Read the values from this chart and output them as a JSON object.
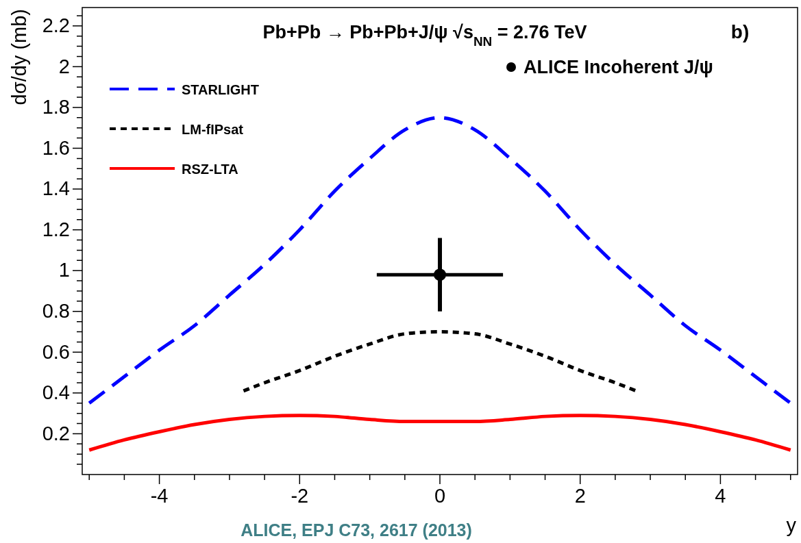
{
  "chart_data": {
    "type": "line",
    "title": "Pb+Pb → Pb+Pb+J/ψ   √s$_{NN}$ = 2.76 TeV",
    "subtitle": "b)",
    "xlabel": "y",
    "ylabel": "dσ/dy (mb)",
    "annotations": [
      "ALICE, EPJ C73, 2617 (2013)"
    ],
    "xlim": [
      -5.1,
      5.1
    ],
    "ylim": [
      0,
      2.29
    ],
    "xticks": [
      -4,
      -2,
      0,
      2,
      4,
      {
        "value": -5,
        "label": null
      },
      {
        "value": -4.5,
        "label": null
      },
      {
        "value": -3.5,
        "label": null
      },
      {
        "value": -3,
        "label": null
      },
      {
        "value": -2.5,
        "label": null
      },
      {
        "value": -1.5,
        "label": null
      },
      {
        "value": -1,
        "label": null
      },
      {
        "value": -0.5,
        "label": null
      },
      {
        "value": 0.5,
        "label": null
      },
      {
        "value": 1,
        "label": null
      },
      {
        "value": 1.5,
        "label": null
      },
      {
        "value": 2.5,
        "label": null
      },
      {
        "value": 3,
        "label": null
      },
      {
        "value": 3.5,
        "label": null
      },
      {
        "value": 4.5,
        "label": null
      },
      {
        "value": 5,
        "label": null
      }
    ],
    "yticks": [
      0.2,
      0.4,
      0.6,
      0.8,
      1,
      1.2,
      1.4,
      1.6,
      1.8,
      2,
      2.2,
      {
        "value": 0.05,
        "label": null
      },
      {
        "value": 0.1,
        "label": null
      },
      {
        "value": 0.15,
        "label": null
      },
      {
        "value": 0.25,
        "label": null
      },
      {
        "value": 0.3,
        "label": null
      },
      {
        "value": 0.35,
        "label": null
      },
      {
        "value": 0.45,
        "label": null
      },
      {
        "value": 0.5,
        "label": null
      },
      {
        "value": 0.55,
        "label": null
      },
      {
        "value": 0.65,
        "label": null
      },
      {
        "value": 0.7,
        "label": null
      },
      {
        "value": 0.75,
        "label": null
      },
      {
        "value": 0.85,
        "label": null
      },
      {
        "value": 0.9,
        "label": null
      },
      {
        "value": 0.95,
        "label": null
      },
      {
        "value": 1.05,
        "label": null
      },
      {
        "value": 1.1,
        "label": null
      },
      {
        "value": 1.15,
        "label": null
      },
      {
        "value": 1.25,
        "label": null
      },
      {
        "value": 1.3,
        "label": null
      },
      {
        "value": 1.35,
        "label": null
      },
      {
        "value": 1.45,
        "label": null
      },
      {
        "value": 1.5,
        "label": null
      },
      {
        "value": 1.55,
        "label": null
      },
      {
        "value": 1.65,
        "label": null
      },
      {
        "value": 1.7,
        "label": null
      },
      {
        "value": 1.75,
        "label": null
      },
      {
        "value": 1.85,
        "label": null
      },
      {
        "value": 1.9,
        "label": null
      },
      {
        "value": 1.95,
        "label": null
      },
      {
        "value": 2.05,
        "label": null
      },
      {
        "value": 2.1,
        "label": null
      },
      {
        "value": 2.15,
        "label": null
      },
      {
        "value": 2.25,
        "label": null
      }
    ],
    "grid": false,
    "legend": "top left",
    "marker": "none",
    "series": [
      {
        "name": "STARLIGHT",
        "color": "#0000ff",
        "line_style": "dashed",
        "x": [
          -5,
          -4.5,
          -4,
          -3.5,
          -3,
          -2.5,
          -2,
          -1.5,
          -1,
          -0.5,
          0,
          0.5,
          1,
          1.5,
          2,
          2.5,
          3,
          3.5,
          4,
          4.5,
          5
        ],
        "values": [
          0.35,
          0.48,
          0.61,
          0.73,
          0.88,
          1.03,
          1.2,
          1.39,
          1.55,
          1.69,
          1.75,
          1.69,
          1.55,
          1.39,
          1.2,
          1.03,
          0.88,
          0.73,
          0.61,
          0.48,
          0.35
        ]
      },
      {
        "name": "LM-fIPsat",
        "color": "#000000",
        "line_style": "dotted",
        "x": [
          -2.8,
          -2.5,
          -2,
          -1.5,
          -1,
          -0.5,
          0,
          0.5,
          1,
          1.5,
          2,
          2.5,
          2.8
        ],
        "values": [
          0.41,
          0.45,
          0.51,
          0.58,
          0.64,
          0.69,
          0.7,
          0.69,
          0.64,
          0.58,
          0.51,
          0.45,
          0.41
        ]
      },
      {
        "name": "RSZ-LTA",
        "color": "#ff0000",
        "line_style": "solid",
        "x": [
          -5,
          -4.5,
          -4,
          -3.5,
          -3,
          -2.5,
          -2,
          -1.5,
          -1,
          -0.5,
          0,
          0.5,
          1,
          1.5,
          2,
          2.5,
          3,
          3.5,
          4,
          4.5,
          5
        ],
        "values": [
          0.12,
          0.17,
          0.21,
          0.245,
          0.27,
          0.285,
          0.29,
          0.285,
          0.27,
          0.26,
          0.26,
          0.26,
          0.27,
          0.285,
          0.29,
          0.285,
          0.27,
          0.245,
          0.21,
          0.17,
          0.12
        ]
      },
      {
        "name": "ALICE Incoherent J/ψ",
        "type": "scatter",
        "color": "#000000",
        "marker": "circle",
        "x": [
          0
        ],
        "values": [
          0.98
        ],
        "errors": [
          0.18
        ],
        "xerrors": [
          0.9
        ]
      }
    ]
  }
}
